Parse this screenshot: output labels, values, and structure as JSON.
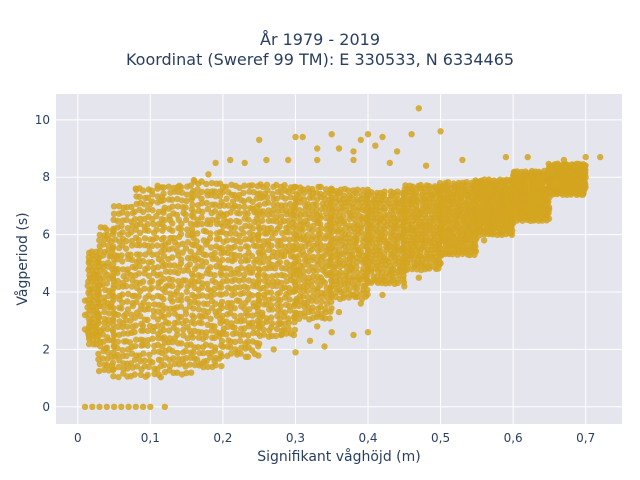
{
  "chart_data": {
    "type": "scatter",
    "title": [
      "År 1979 - 2019",
      "Koordinat (Sweref 99 TM): E 330533, N 6334465"
    ],
    "xlabel": "Signifikant våghöjd (m)",
    "ylabel": "Vågperiod (s)",
    "xlim": [
      -0.03,
      0.75
    ],
    "ylim": [
      -0.6,
      10.9
    ],
    "xticks": [
      0,
      0.1,
      0.2,
      0.3,
      0.4,
      0.5,
      0.6,
      0.7
    ],
    "xtick_labels": [
      "0",
      "0,1",
      "0,2",
      "0,3",
      "0,4",
      "0,5",
      "0,6",
      "0,7"
    ],
    "yticks": [
      0,
      2,
      4,
      6,
      8,
      10
    ],
    "ytick_labels": [
      "0",
      "2",
      "4",
      "6",
      "8",
      "10"
    ],
    "grid": true,
    "legend": "none",
    "series_color": "#D4A420",
    "plot_bg": "#E5E5EE",
    "dense_bands": [
      {
        "x_from": 0.015,
        "x_to": 0.03,
        "y_low": 2.2,
        "y_high": 5.5
      },
      {
        "x_from": 0.03,
        "x_to": 0.05,
        "y_low": 1.3,
        "y_high": 6.4
      },
      {
        "x_from": 0.05,
        "x_to": 0.08,
        "y_low": 1.1,
        "y_high": 7.2
      },
      {
        "x_from": 0.08,
        "x_to": 0.12,
        "y_low": 1.1,
        "y_high": 7.6
      },
      {
        "x_from": 0.12,
        "x_to": 0.16,
        "y_low": 1.2,
        "y_high": 7.7
      },
      {
        "x_from": 0.16,
        "x_to": 0.2,
        "y_low": 1.4,
        "y_high": 7.8
      },
      {
        "x_from": 0.2,
        "x_to": 0.25,
        "y_low": 1.8,
        "y_high": 7.9
      },
      {
        "x_from": 0.25,
        "x_to": 0.3,
        "y_low": 2.5,
        "y_high": 7.9
      },
      {
        "x_from": 0.3,
        "x_to": 0.35,
        "y_low": 3.1,
        "y_high": 7.8
      },
      {
        "x_from": 0.35,
        "x_to": 0.4,
        "y_low": 3.8,
        "y_high": 7.7
      },
      {
        "x_from": 0.4,
        "x_to": 0.45,
        "y_low": 4.3,
        "y_high": 7.6
      },
      {
        "x_from": 0.45,
        "x_to": 0.5,
        "y_low": 4.8,
        "y_high": 7.7
      },
      {
        "x_from": 0.5,
        "x_to": 0.55,
        "y_low": 5.3,
        "y_high": 7.8
      },
      {
        "x_from": 0.55,
        "x_to": 0.6,
        "y_low": 6.0,
        "y_high": 7.9
      },
      {
        "x_from": 0.6,
        "x_to": 0.65,
        "y_low": 6.5,
        "y_high": 8.2
      },
      {
        "x_from": 0.65,
        "x_to": 0.7,
        "y_low": 7.4,
        "y_high": 8.5
      }
    ],
    "points": [
      [
        0.01,
        0.0
      ],
      [
        0.02,
        0.0
      ],
      [
        0.03,
        0.0
      ],
      [
        0.04,
        0.0
      ],
      [
        0.05,
        0.0
      ],
      [
        0.06,
        0.0
      ],
      [
        0.07,
        0.0
      ],
      [
        0.08,
        0.0
      ],
      [
        0.09,
        0.0
      ],
      [
        0.1,
        0.0
      ],
      [
        0.12,
        0.0
      ],
      [
        0.01,
        3.7
      ],
      [
        0.01,
        3.2
      ],
      [
        0.01,
        2.7
      ],
      [
        0.015,
        2.5
      ],
      [
        0.2,
        2.6
      ],
      [
        0.25,
        2.2
      ],
      [
        0.28,
        2.5
      ],
      [
        0.32,
        2.3
      ],
      [
        0.35,
        2.6
      ],
      [
        0.38,
        2.5
      ],
      [
        0.4,
        2.6
      ],
      [
        0.17,
        1.5
      ],
      [
        0.19,
        1.7
      ],
      [
        0.22,
        1.9
      ],
      [
        0.27,
        2.0
      ],
      [
        0.3,
        1.9
      ],
      [
        0.34,
        2.1
      ],
      [
        0.28,
        2.9
      ],
      [
        0.33,
        2.8
      ],
      [
        0.36,
        3.3
      ],
      [
        0.39,
        3.6
      ],
      [
        0.42,
        3.9
      ],
      [
        0.45,
        4.2
      ],
      [
        0.47,
        4.5
      ],
      [
        0.5,
        5.0
      ],
      [
        0.53,
        5.5
      ],
      [
        0.56,
        5.8
      ],
      [
        0.58,
        6.2
      ],
      [
        0.6,
        6.4
      ],
      [
        0.62,
        6.8
      ],
      [
        0.65,
        7.3
      ],
      [
        0.19,
        8.5
      ],
      [
        0.21,
        8.6
      ],
      [
        0.23,
        8.5
      ],
      [
        0.26,
        8.6
      ],
      [
        0.29,
        8.6
      ],
      [
        0.33,
        8.6
      ],
      [
        0.38,
        8.6
      ],
      [
        0.43,
        8.5
      ],
      [
        0.48,
        8.4
      ],
      [
        0.53,
        8.6
      ],
      [
        0.59,
        8.7
      ],
      [
        0.62,
        8.7
      ],
      [
        0.67,
        8.6
      ],
      [
        0.7,
        8.7
      ],
      [
        0.72,
        8.7
      ],
      [
        0.69,
        8.4
      ],
      [
        0.25,
        9.3
      ],
      [
        0.3,
        9.4
      ],
      [
        0.31,
        9.4
      ],
      [
        0.35,
        9.5
      ],
      [
        0.39,
        9.3
      ],
      [
        0.4,
        9.5
      ],
      [
        0.42,
        9.4
      ],
      [
        0.46,
        9.5
      ],
      [
        0.5,
        9.6
      ],
      [
        0.47,
        10.4
      ],
      [
        0.36,
        9.0
      ],
      [
        0.41,
        9.1
      ],
      [
        0.44,
        8.9
      ],
      [
        0.38,
        8.9
      ],
      [
        0.33,
        9.0
      ],
      [
        0.14,
        7.7
      ],
      [
        0.11,
        7.7
      ],
      [
        0.08,
        7.6
      ],
      [
        0.16,
        7.9
      ],
      [
        0.18,
        8.1
      ]
    ]
  }
}
